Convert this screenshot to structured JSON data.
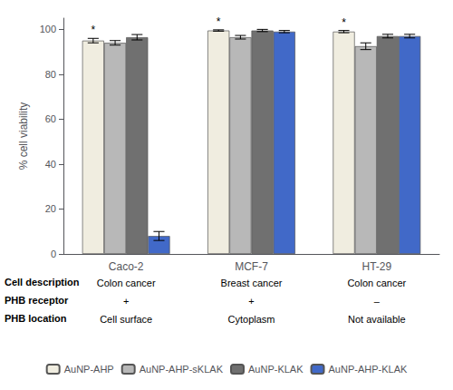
{
  "chart_data": {
    "type": "bar",
    "categories": [
      "Caco-2",
      "MCF-7",
      "HT-29"
    ],
    "series": [
      {
        "name": "AuNP-AHP",
        "color": "#f0ede0",
        "values": [
          95.0,
          99.5,
          99.0
        ],
        "errors": [
          1.0,
          0.3,
          0.5
        ]
      },
      {
        "name": "AuNP-AHP-sKLAK",
        "color": "#b8b8b8",
        "values": [
          94.0,
          96.5,
          92.5
        ],
        "errors": [
          1.0,
          0.8,
          1.5
        ]
      },
      {
        "name": "AuNP-KLAK",
        "color": "#707070",
        "values": [
          96.5,
          99.5,
          97.0
        ],
        "errors": [
          1.2,
          0.5,
          0.8
        ]
      },
      {
        "name": "AuNP-AHP-KLAK",
        "color": "#4169c8",
        "values": [
          8.0,
          99.0,
          97.0
        ],
        "errors": [
          2.0,
          0.5,
          0.8
        ]
      }
    ],
    "ylabel": "% cell viability",
    "ylim": [
      0,
      105
    ],
    "yticks": [
      0,
      20,
      40,
      60,
      80,
      100
    ],
    "grid": false,
    "legend": "bottom",
    "annotations": [
      {
        "text": "*",
        "series": "AuNP-AHP",
        "category": "Caco-2"
      },
      {
        "text": "*",
        "series": "AuNP-AHP",
        "category": "MCF-7"
      },
      {
        "text": "*",
        "series": "AuNP-AHP",
        "category": "HT-29"
      }
    ],
    "table": [
      {
        "label": "Cell description",
        "values": [
          "Colon cancer",
          "Breast cancer",
          "Colon cancer"
        ]
      },
      {
        "label": "PHB receptor",
        "values": [
          "+",
          "+",
          "–"
        ]
      },
      {
        "label": "PHB location",
        "values": [
          "Cell surface",
          "Cytoplasm",
          "Not available"
        ]
      }
    ]
  }
}
